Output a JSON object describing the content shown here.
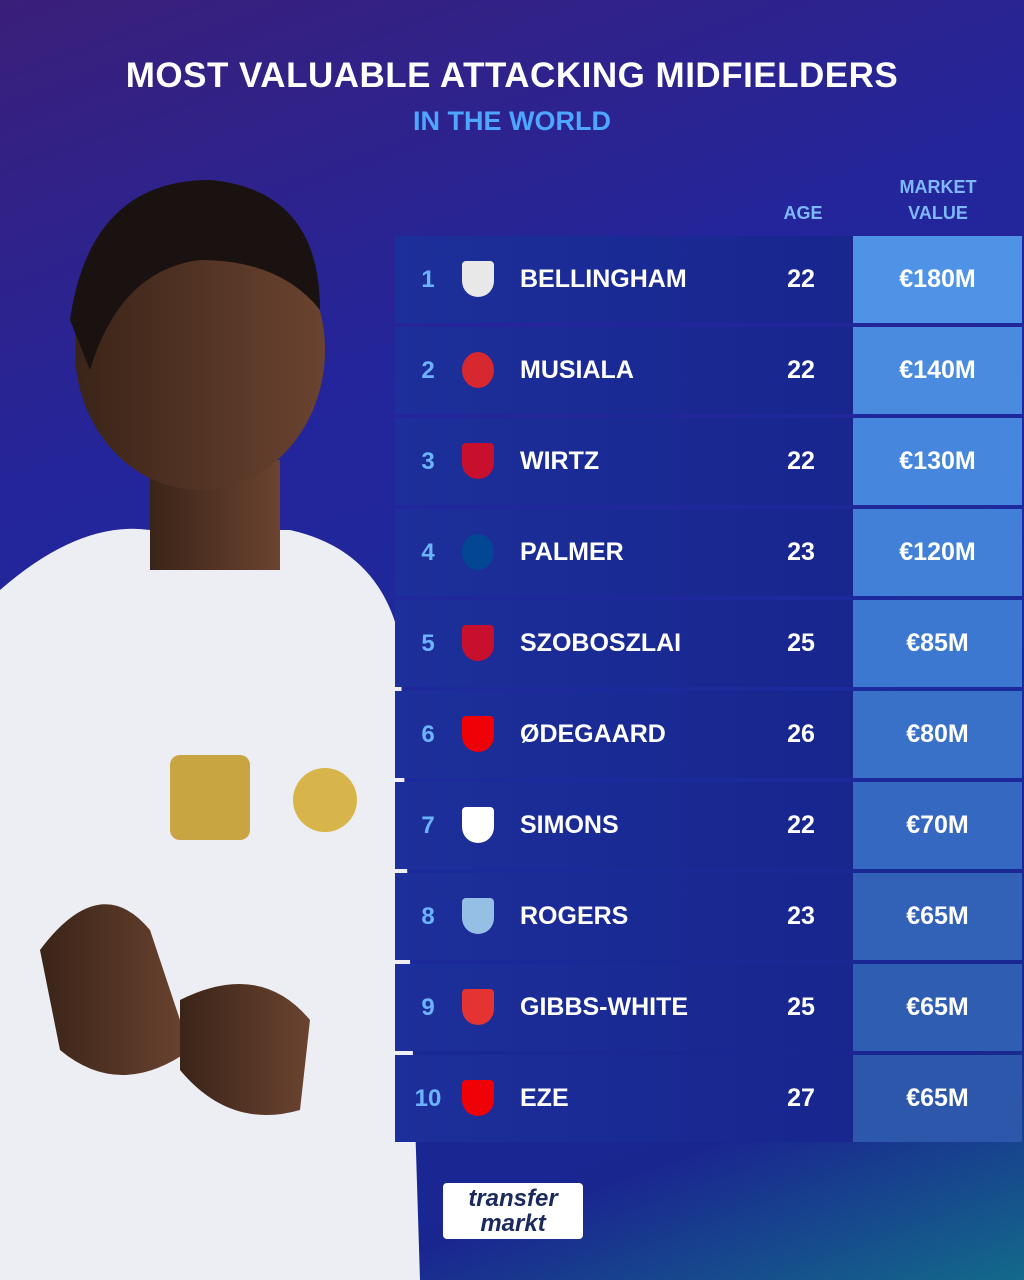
{
  "header": {
    "title": "MOST VALUABLE ATTACKING MIDFIELDERS",
    "subtitle": "IN THE WORLD"
  },
  "table": {
    "columns": [
      "AGE",
      "MARKET VALUE"
    ],
    "rows": [
      {
        "rank": 1,
        "player": "BELLINGHAM",
        "age": 22,
        "value": "€180M"
      },
      {
        "rank": 2,
        "player": "MUSIALA",
        "age": 22,
        "value": "€140M"
      },
      {
        "rank": 3,
        "player": "WIRTZ",
        "age": 22,
        "value": "€130M"
      },
      {
        "rank": 4,
        "player": "PALMER",
        "age": 23,
        "value": "€120M"
      },
      {
        "rank": 5,
        "player": "SZOBOSZLAI",
        "age": 25,
        "value": "€85M"
      },
      {
        "rank": 6,
        "player": "ØDEGAARD",
        "age": 26,
        "value": "€80M"
      },
      {
        "rank": 7,
        "player": "SIMONS",
        "age": 22,
        "value": "€70M"
      },
      {
        "rank": 8,
        "player": "ROGERS",
        "age": 23,
        "value": "€65M"
      },
      {
        "rank": 9,
        "player": "GIBBS-WHITE",
        "age": 25,
        "value": "€65M"
      },
      {
        "rank": 10,
        "player": "EZE",
        "age": 27,
        "value": "€65M"
      }
    ]
  },
  "logo": {
    "line1": "transfer",
    "line2": "markt"
  }
}
